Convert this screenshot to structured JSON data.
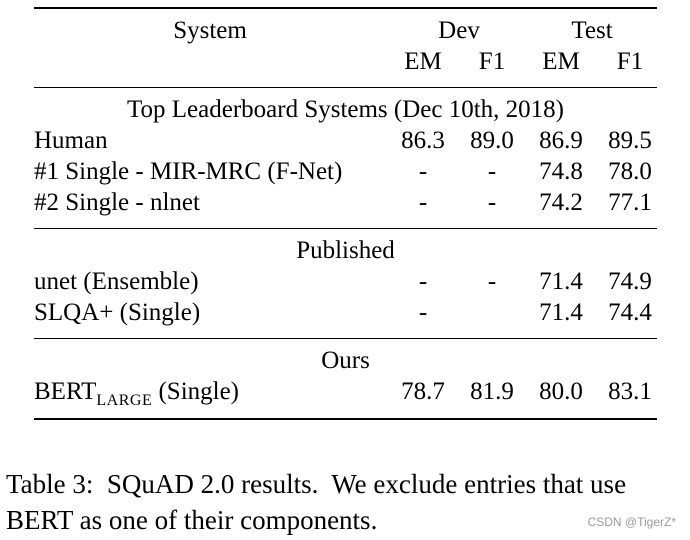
{
  "table": {
    "header": {
      "system": "System",
      "dev": "Dev",
      "test": "Test",
      "em": "EM",
      "f1": "F1"
    },
    "sections": [
      {
        "title": "Top Leaderboard Systems (Dec 10th, 2018)",
        "rows": [
          {
            "system": "Human",
            "dev_em": "86.3",
            "dev_f1": "89.0",
            "test_em": "86.9",
            "test_f1": "89.5"
          },
          {
            "system": "#1 Single - MIR-MRC (F-Net)",
            "dev_em": "-",
            "dev_f1": "-",
            "test_em": "74.8",
            "test_f1": "78.0"
          },
          {
            "system": "#2 Single - nlnet",
            "dev_em": "-",
            "dev_f1": "-",
            "test_em": "74.2",
            "test_f1": "77.1"
          }
        ]
      },
      {
        "title": "Published",
        "rows": [
          {
            "system": "unet (Ensemble)",
            "dev_em": "-",
            "dev_f1": "-",
            "test_em": "71.4",
            "test_f1": "74.9"
          },
          {
            "system": "SLQA+ (Single)",
            "dev_em": "-",
            "dev_f1": "",
            "test_em": "71.4",
            "test_f1": "74.4"
          }
        ]
      },
      {
        "title": "Ours",
        "rows": [
          {
            "system_main": "BERT",
            "system_sub": "LARGE",
            "system_suffix": " (Single)",
            "dev_em": "78.7",
            "dev_f1": "81.9",
            "test_em": "80.0",
            "test_f1": "83.1"
          }
        ]
      }
    ]
  },
  "caption": "Table 3:  SQuAD 2.0 results.  We exclude entries that use BERT as one of their components.",
  "watermark": "CSDN @TigerZ*"
}
